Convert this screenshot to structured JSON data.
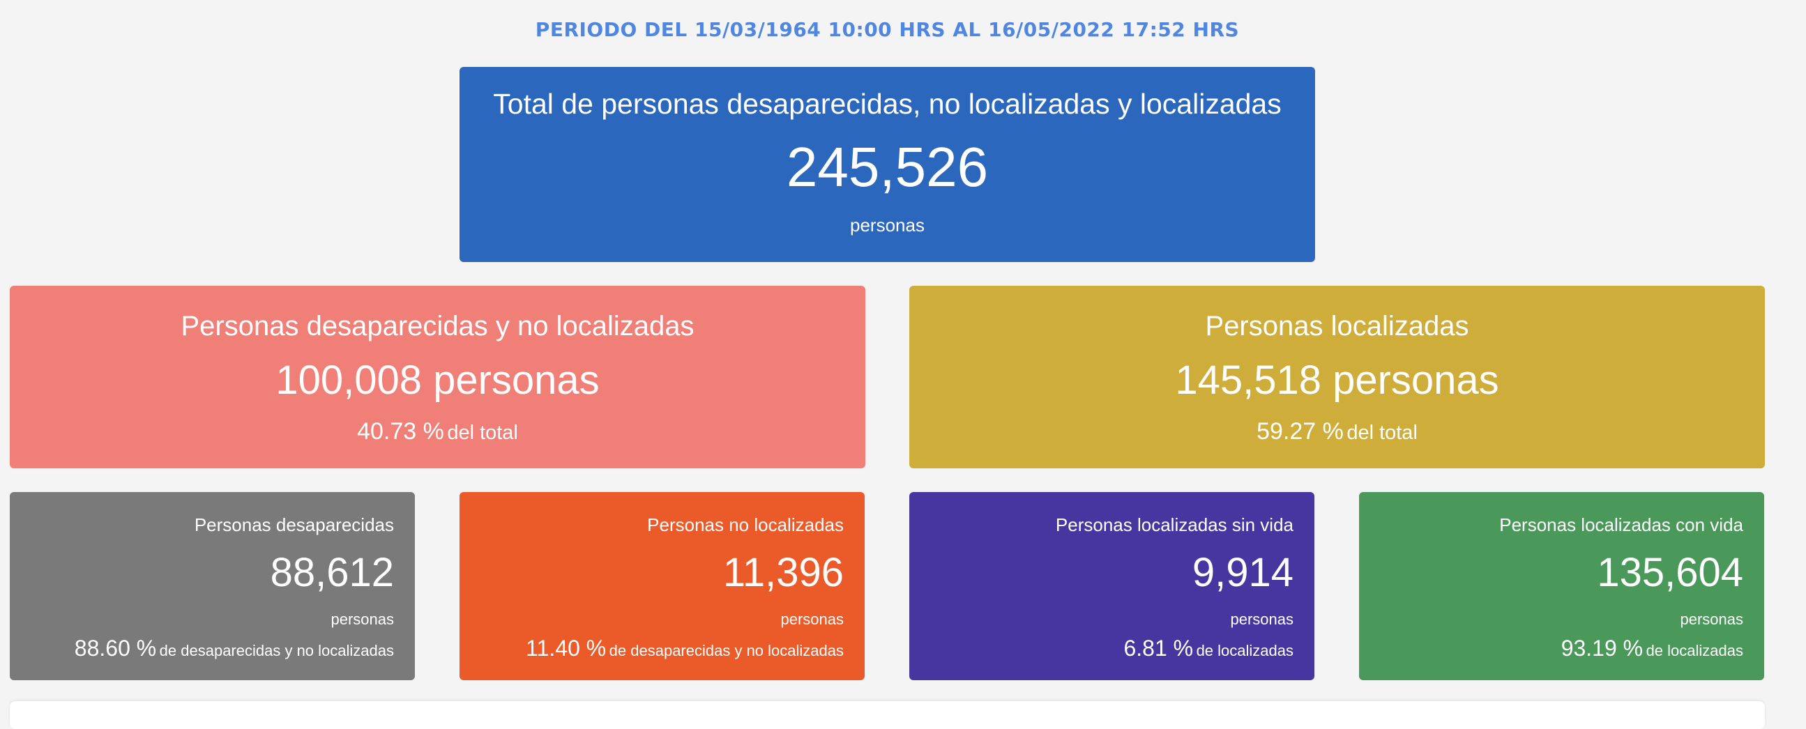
{
  "period": "PERIODO DEL 15/03/1964 10:00 HRS AL 16/05/2022 17:52 HRS",
  "total": {
    "title": "Total de personas desaparecidas, no localizadas y localizadas",
    "value": "245,526",
    "unit": "personas",
    "color": "#2b67bc"
  },
  "mid": [
    {
      "title": "Personas desaparecidas y no localizadas",
      "value": "100,008 personas",
      "pct": "40.73 %",
      "pct_label": "del total",
      "color": "#f07f77"
    },
    {
      "title": "Personas localizadas",
      "value": "145,518 personas",
      "pct": "59.27 %",
      "pct_label": "del total",
      "color": "#cfad3a"
    }
  ],
  "small": [
    {
      "title": "Personas desaparecidas",
      "value": "88,612",
      "unit": "personas",
      "pct": "88.60 %",
      "pct_label": "de desaparecidas y no localizadas",
      "color": "#7a7a7a"
    },
    {
      "title": "Personas no localizadas",
      "value": "11,396",
      "unit": "personas",
      "pct": "11.40 %",
      "pct_label": "de desaparecidas y no localizadas",
      "color": "#eb5a29"
    },
    {
      "title": "Personas localizadas sin vida",
      "value": "9,914",
      "unit": "personas",
      "pct": "6.81 %",
      "pct_label": "de localizadas",
      "color": "#4836a0"
    },
    {
      "title": "Personas localizadas con vida",
      "value": "135,604",
      "unit": "personas",
      "pct": "93.19 %",
      "pct_label": "de localizadas",
      "color": "#4a995a"
    }
  ]
}
